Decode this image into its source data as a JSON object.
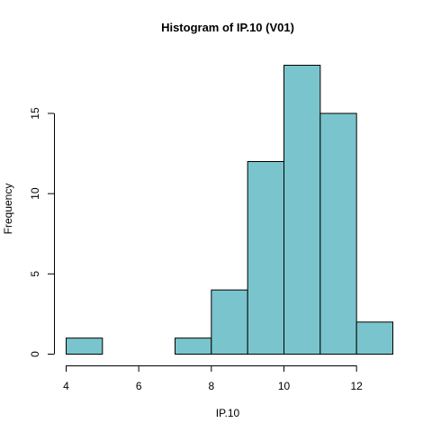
{
  "chart_data": {
    "type": "bar",
    "title": "Histogram of IP.10 (V01)",
    "xlabel": "IP.10",
    "ylabel": "Frequency",
    "bins": [
      {
        "from": 4,
        "to": 5,
        "count": 1
      },
      {
        "from": 5,
        "to": 6,
        "count": 0
      },
      {
        "from": 6,
        "to": 7,
        "count": 0
      },
      {
        "from": 7,
        "to": 8,
        "count": 1
      },
      {
        "from": 8,
        "to": 9,
        "count": 4
      },
      {
        "from": 9,
        "to": 10,
        "count": 12
      },
      {
        "from": 10,
        "to": 11,
        "count": 18
      },
      {
        "from": 11,
        "to": 12,
        "count": 15
      },
      {
        "from": 12,
        "to": 13,
        "count": 2
      }
    ],
    "xlim": [
      4,
      13
    ],
    "ylim": [
      0,
      18
    ],
    "x_ticks": [
      4,
      6,
      8,
      10,
      12
    ],
    "y_ticks": [
      0,
      5,
      10,
      15
    ],
    "bar_color": "#7AC5CD",
    "grid": false
  }
}
